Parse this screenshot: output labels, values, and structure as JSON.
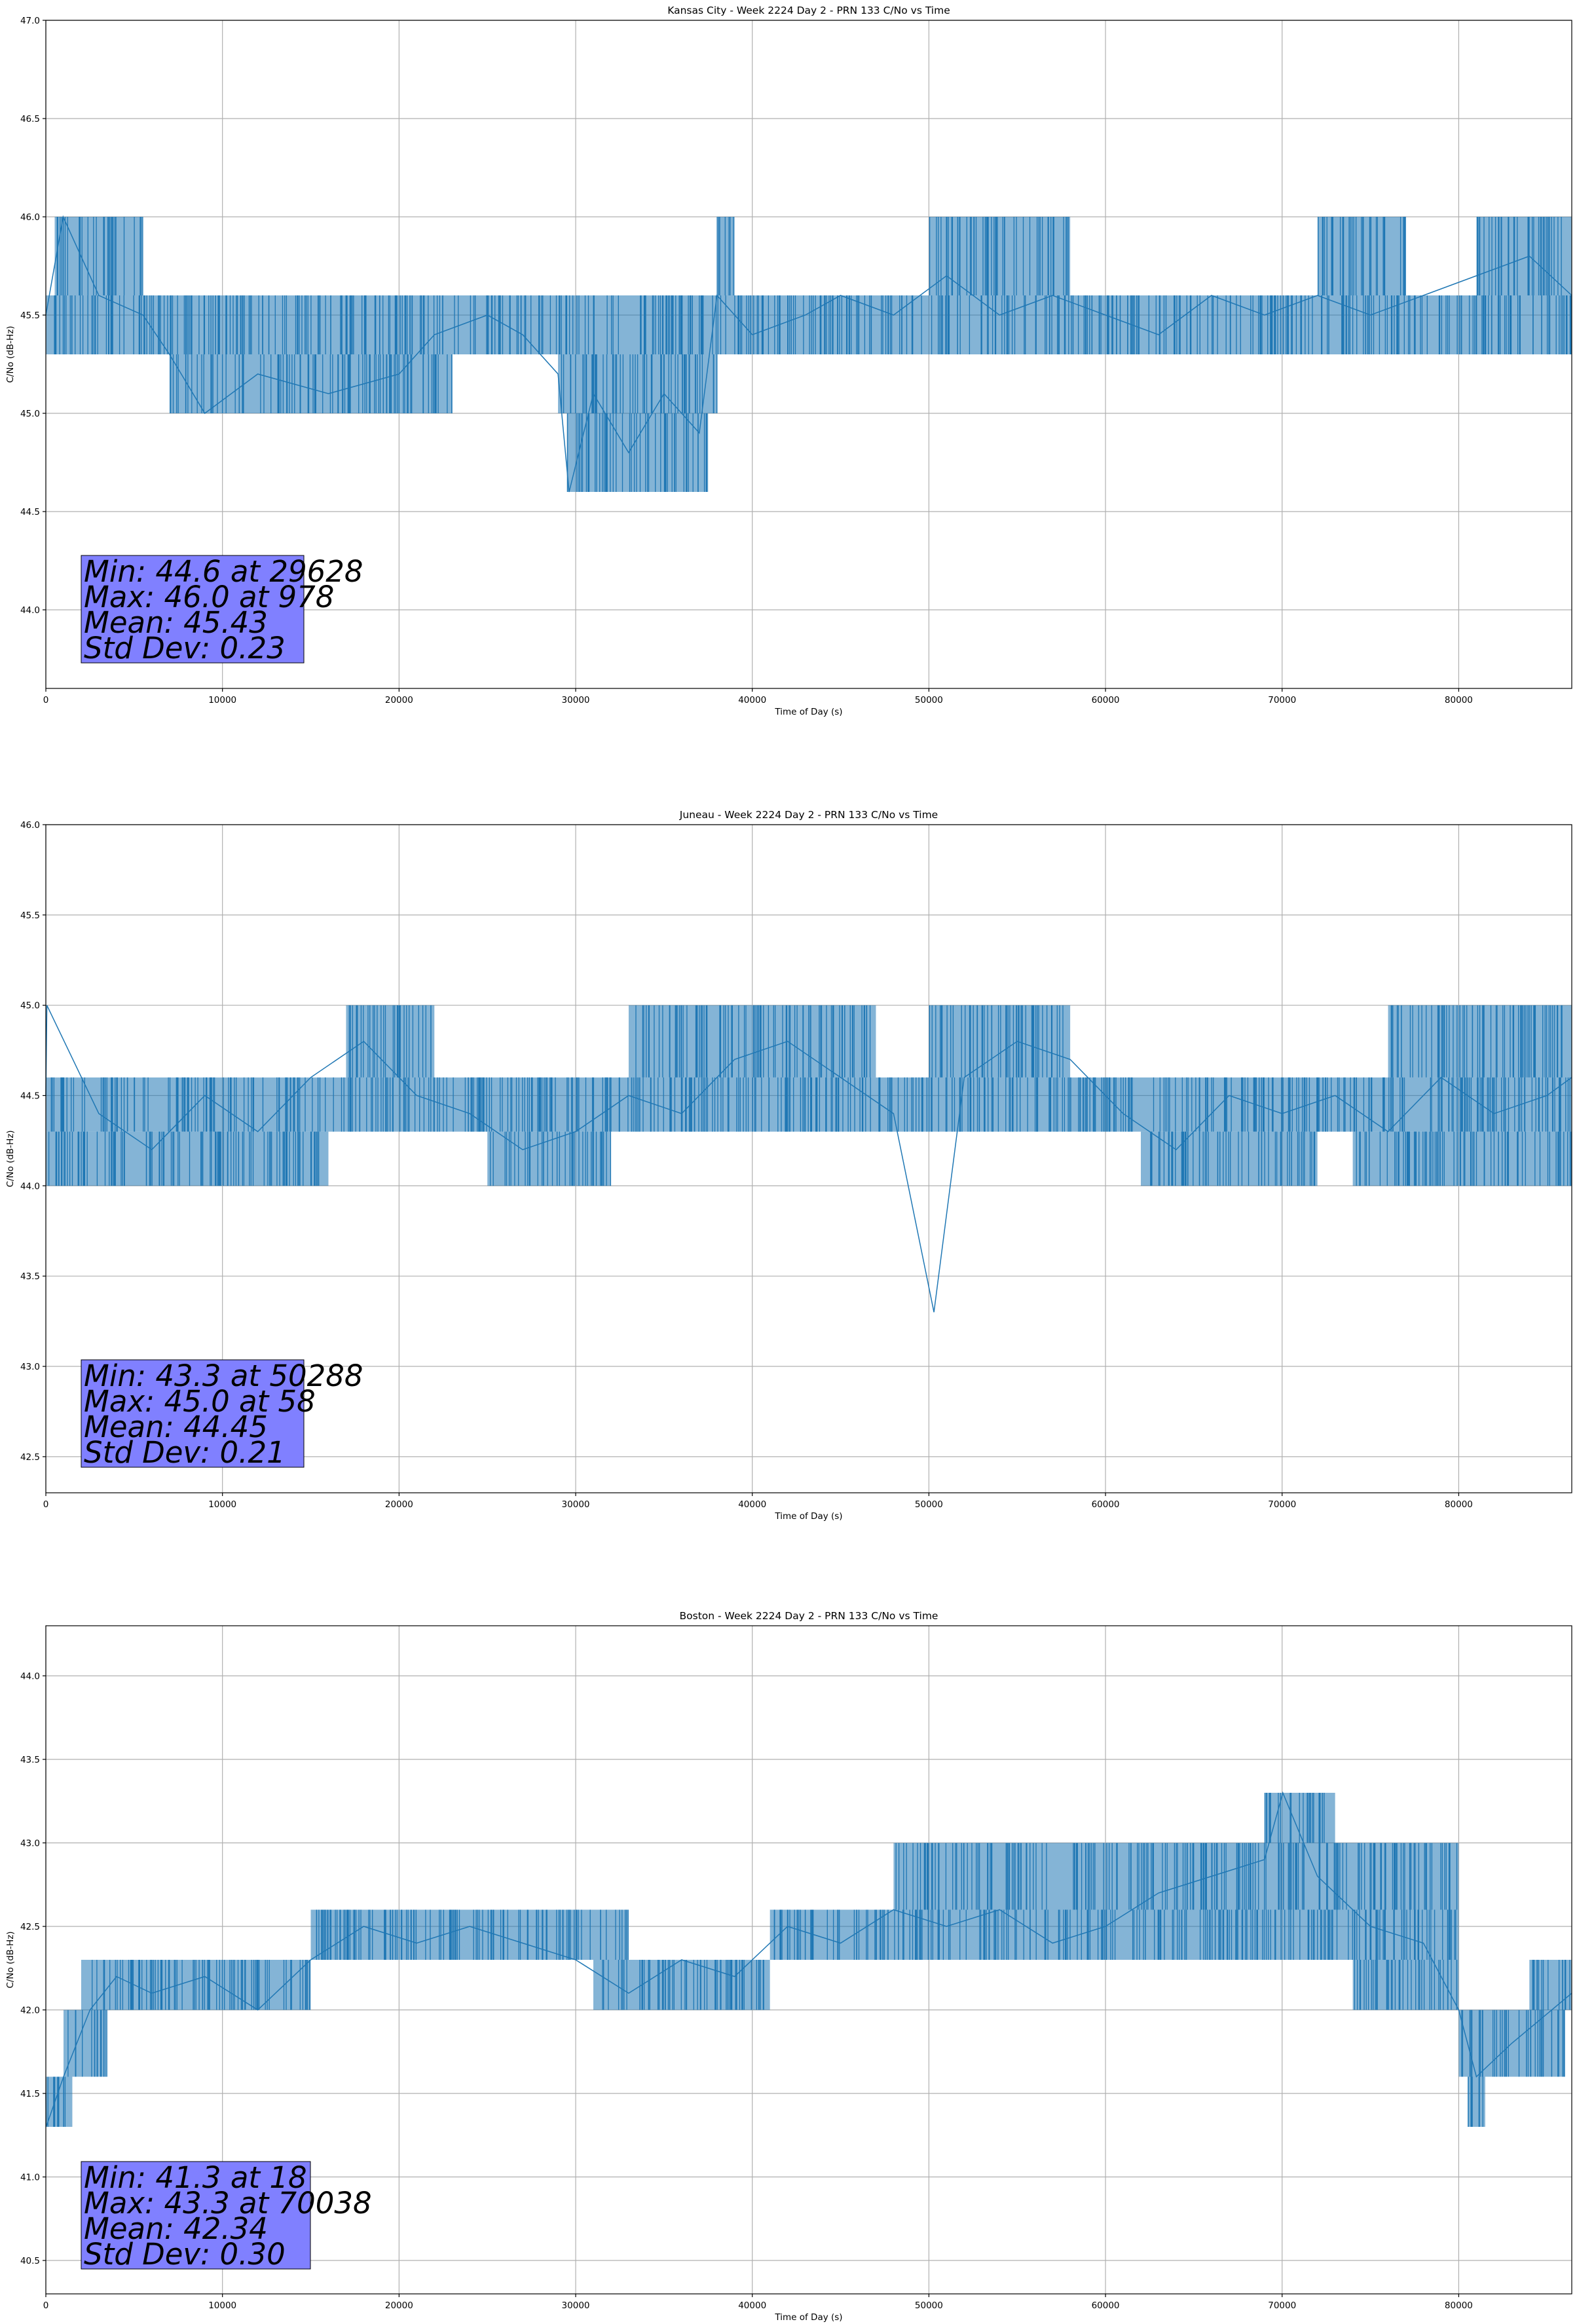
{
  "chart_data": [
    {
      "type": "line",
      "title": "Kansas City - Week 2224 Day 2 - PRN 133 C/No vs Time",
      "xlabel": "Time of Day (s)",
      "ylabel": "C/No (dB-Hz)",
      "xlim": [
        0,
        86400
      ],
      "ylim": [
        43.6,
        47.0
      ],
      "xticks": [
        0,
        10000,
        20000,
        30000,
        40000,
        50000,
        60000,
        70000,
        80000
      ],
      "yticks": [
        44.0,
        44.5,
        45.0,
        45.5,
        46.0,
        46.5,
        47.0
      ],
      "ytick_labels": [
        "44.0",
        "44.5",
        "45.0",
        "45.5",
        "46.0",
        "46.5",
        "47.0"
      ],
      "grid": true,
      "series_color": "#1f77b4",
      "series": [
        {
          "x": [
            0,
            978,
            3000,
            5500,
            7000,
            9000,
            12000,
            16000,
            20000,
            22000,
            25000,
            27000,
            29000,
            29628,
            31000,
            33000,
            35000,
            37000,
            38000,
            40000,
            43000,
            45000,
            48000,
            51000,
            54000,
            57000,
            60000,
            63000,
            66000,
            69000,
            72000,
            75000,
            78000,
            81000,
            84000,
            86400
          ],
          "y": [
            45.5,
            46.0,
            45.6,
            45.5,
            45.3,
            45.0,
            45.2,
            45.1,
            45.2,
            45.4,
            45.5,
            45.4,
            45.2,
            44.6,
            45.1,
            44.8,
            45.1,
            44.9,
            45.6,
            45.4,
            45.5,
            45.6,
            45.5,
            45.7,
            45.5,
            45.6,
            45.5,
            45.4,
            45.6,
            45.5,
            45.6,
            45.5,
            45.6,
            45.7,
            45.8,
            45.6
          ],
          "envelope": [
            {
              "x0": 0,
              "x1": 8000,
              "lo": 45.3,
              "hi": 45.6
            },
            {
              "x0": 500,
              "x1": 5500,
              "lo": 45.6,
              "hi": 46.0
            },
            {
              "x0": 7000,
              "x1": 23000,
              "lo": 45.0,
              "hi": 45.3
            },
            {
              "x0": 8000,
              "x1": 37000,
              "lo": 45.3,
              "hi": 45.6
            },
            {
              "x0": 29000,
              "x1": 38000,
              "lo": 45.0,
              "hi": 45.3
            },
            {
              "x0": 29500,
              "x1": 37500,
              "lo": 44.6,
              "hi": 45.0
            },
            {
              "x0": 37000,
              "x1": 86400,
              "lo": 45.3,
              "hi": 45.6
            },
            {
              "x0": 38000,
              "x1": 39000,
              "lo": 45.6,
              "hi": 46.0
            },
            {
              "x0": 50000,
              "x1": 58000,
              "lo": 45.6,
              "hi": 46.0
            },
            {
              "x0": 72000,
              "x1": 77000,
              "lo": 45.6,
              "hi": 46.0
            },
            {
              "x0": 81000,
              "x1": 86400,
              "lo": 45.6,
              "hi": 46.0
            }
          ]
        }
      ],
      "stats": {
        "line1": "Min: 44.6 at 29628",
        "line2": "Max: 46.0 at 978",
        "line3": "Mean: 45.43",
        "line4": "Std Dev: 0.23"
      }
    },
    {
      "type": "line",
      "title": "Juneau - Week 2224 Day 2 - PRN 133 C/No vs Time",
      "xlabel": "Time of Day (s)",
      "ylabel": "C/No (dB-Hz)",
      "xlim": [
        0,
        86400
      ],
      "ylim": [
        42.3,
        46.0
      ],
      "xticks": [
        0,
        10000,
        20000,
        30000,
        40000,
        50000,
        60000,
        70000,
        80000
      ],
      "yticks": [
        42.5,
        43.0,
        43.5,
        44.0,
        44.5,
        45.0,
        45.5,
        46.0
      ],
      "ytick_labels": [
        "42.5",
        "43.0",
        "43.5",
        "44.0",
        "44.5",
        "45.0",
        "45.5",
        "46.0"
      ],
      "grid": true,
      "series_color": "#1f77b4",
      "series": [
        {
          "x": [
            0,
            58,
            3000,
            6000,
            9000,
            12000,
            15000,
            18000,
            21000,
            24000,
            27000,
            30000,
            33000,
            36000,
            39000,
            42000,
            45000,
            48000,
            50288,
            52000,
            55000,
            58000,
            61000,
            64000,
            67000,
            70000,
            73000,
            76000,
            79000,
            82000,
            85000,
            86400
          ],
          "y": [
            44.5,
            45.0,
            44.4,
            44.2,
            44.5,
            44.3,
            44.6,
            44.8,
            44.5,
            44.4,
            44.2,
            44.3,
            44.5,
            44.4,
            44.7,
            44.8,
            44.6,
            44.4,
            43.3,
            44.6,
            44.8,
            44.7,
            44.4,
            44.2,
            44.5,
            44.4,
            44.5,
            44.3,
            44.6,
            44.4,
            44.5,
            44.6
          ],
          "envelope": [
            {
              "x0": 0,
              "x1": 86400,
              "lo": 44.3,
              "hi": 44.6
            },
            {
              "x0": 0,
              "x1": 16000,
              "lo": 44.0,
              "hi": 44.3
            },
            {
              "x0": 17000,
              "x1": 22000,
              "lo": 44.6,
              "hi": 45.0
            },
            {
              "x0": 25000,
              "x1": 32000,
              "lo": 44.0,
              "hi": 44.3
            },
            {
              "x0": 33000,
              "x1": 47000,
              "lo": 44.6,
              "hi": 45.0
            },
            {
              "x0": 50000,
              "x1": 58000,
              "lo": 44.6,
              "hi": 45.0
            },
            {
              "x0": 62000,
              "x1": 72000,
              "lo": 44.0,
              "hi": 44.3
            },
            {
              "x0": 74000,
              "x1": 86400,
              "lo": 44.0,
              "hi": 44.3
            },
            {
              "x0": 76000,
              "x1": 86400,
              "lo": 44.6,
              "hi": 45.0
            }
          ]
        }
      ],
      "stats": {
        "line1": "Min: 43.3 at 50288",
        "line2": "Max: 45.0 at 58",
        "line3": "Mean: 44.45",
        "line4": "Std Dev: 0.21"
      }
    },
    {
      "type": "line",
      "title": "Boston - Week 2224 Day 2 - PRN 133 C/No vs Time",
      "xlabel": "Time of Day (s)",
      "ylabel": "C/No (dB-Hz)",
      "xlim": [
        0,
        86400
      ],
      "ylim": [
        40.3,
        44.3
      ],
      "xticks": [
        0,
        10000,
        20000,
        30000,
        40000,
        50000,
        60000,
        70000,
        80000
      ],
      "yticks": [
        40.5,
        41.0,
        41.5,
        42.0,
        42.5,
        43.0,
        43.5,
        44.0
      ],
      "ytick_labels": [
        "40.5",
        "41.0",
        "41.5",
        "42.0",
        "42.5",
        "43.0",
        "43.5",
        "44.0"
      ],
      "grid": true,
      "series_color": "#1f77b4",
      "series": [
        {
          "x": [
            0,
            18,
            1000,
            2500,
            4000,
            6000,
            9000,
            12000,
            15000,
            18000,
            21000,
            24000,
            27000,
            30000,
            33000,
            36000,
            39000,
            42000,
            45000,
            48000,
            51000,
            54000,
            57000,
            60000,
            63000,
            66000,
            69000,
            70038,
            72000,
            75000,
            78000,
            80000,
            81000,
            83000,
            86400
          ],
          "y": [
            41.5,
            41.3,
            41.6,
            42.0,
            42.2,
            42.1,
            42.2,
            42.0,
            42.3,
            42.5,
            42.4,
            42.5,
            42.4,
            42.3,
            42.1,
            42.3,
            42.2,
            42.5,
            42.4,
            42.6,
            42.5,
            42.6,
            42.4,
            42.5,
            42.7,
            42.8,
            42.9,
            43.3,
            42.8,
            42.5,
            42.4,
            42.0,
            41.6,
            41.8,
            42.1
          ],
          "envelope": [
            {
              "x0": 0,
              "x1": 1500,
              "lo": 41.3,
              "hi": 41.6
            },
            {
              "x0": 1000,
              "x1": 3500,
              "lo": 41.6,
              "hi": 42.0
            },
            {
              "x0": 2000,
              "x1": 15000,
              "lo": 42.0,
              "hi": 42.3
            },
            {
              "x0": 15000,
              "x1": 33000,
              "lo": 42.3,
              "hi": 42.6
            },
            {
              "x0": 31000,
              "x1": 41000,
              "lo": 42.0,
              "hi": 42.3
            },
            {
              "x0": 41000,
              "x1": 80000,
              "lo": 42.3,
              "hi": 42.6
            },
            {
              "x0": 48000,
              "x1": 80000,
              "lo": 42.6,
              "hi": 43.0
            },
            {
              "x0": 69000,
              "x1": 73000,
              "lo": 43.0,
              "hi": 43.3
            },
            {
              "x0": 74000,
              "x1": 80000,
              "lo": 42.0,
              "hi": 42.3
            },
            {
              "x0": 80000,
              "x1": 86000,
              "lo": 41.6,
              "hi": 42.0
            },
            {
              "x0": 80500,
              "x1": 81500,
              "lo": 41.3,
              "hi": 41.6
            },
            {
              "x0": 84000,
              "x1": 86400,
              "lo": 42.0,
              "hi": 42.3
            }
          ]
        }
      ],
      "stats": {
        "line1": "Min: 41.3 at 18",
        "line2": "Max: 43.3 at 70038",
        "line3": "Mean: 42.34",
        "line4": "Std Dev: 0.30"
      }
    }
  ]
}
